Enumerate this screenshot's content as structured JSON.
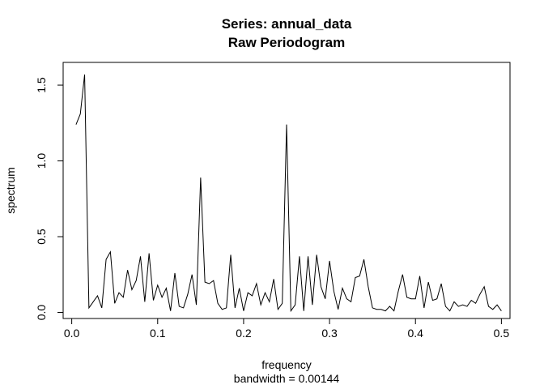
{
  "chart_data": {
    "type": "line",
    "title": "Series: annual_data",
    "subtitle": "Raw Periodogram",
    "xlabel": "frequency",
    "xlabel_sub": "bandwidth = 0.00144",
    "ylabel": "spectrum",
    "xlim": [
      -0.01,
      0.51
    ],
    "ylim": [
      -0.04,
      1.65
    ],
    "xticks": [
      {
        "value": 0.0,
        "label": "0.0"
      },
      {
        "value": 0.1,
        "label": "0.1"
      },
      {
        "value": 0.2,
        "label": "0.2"
      },
      {
        "value": 0.3,
        "label": "0.3"
      },
      {
        "value": 0.4,
        "label": "0.4"
      },
      {
        "value": 0.5,
        "label": "0.5"
      }
    ],
    "yticks": [
      {
        "value": 0.0,
        "label": "0.0"
      },
      {
        "value": 0.5,
        "label": "0.5"
      },
      {
        "value": 1.0,
        "label": "1.0"
      },
      {
        "value": 1.5,
        "label": "1.5"
      }
    ],
    "grid": false,
    "line_color": "#000000",
    "series": [
      {
        "x": [
          0.005,
          0.01,
          0.015,
          0.02,
          0.025,
          0.03,
          0.035,
          0.04,
          0.045,
          0.05,
          0.055,
          0.06,
          0.065,
          0.07,
          0.075,
          0.08,
          0.085,
          0.09,
          0.095,
          0.1,
          0.105,
          0.11,
          0.115,
          0.12,
          0.125,
          0.13,
          0.135,
          0.14,
          0.145,
          0.15,
          0.155,
          0.16,
          0.165,
          0.17,
          0.175,
          0.18,
          0.185,
          0.19,
          0.195,
          0.2,
          0.205,
          0.21,
          0.215,
          0.22,
          0.225,
          0.23,
          0.235,
          0.24,
          0.245,
          0.25,
          0.255,
          0.26,
          0.265,
          0.27,
          0.275,
          0.28,
          0.285,
          0.29,
          0.295,
          0.3,
          0.305,
          0.31,
          0.315,
          0.32,
          0.325,
          0.33,
          0.335,
          0.34,
          0.345,
          0.35,
          0.355,
          0.36,
          0.365,
          0.37,
          0.375,
          0.38,
          0.385,
          0.39,
          0.395,
          0.4,
          0.405,
          0.41,
          0.415,
          0.42,
          0.425,
          0.43,
          0.435,
          0.44,
          0.445,
          0.45,
          0.455,
          0.46,
          0.465,
          0.47,
          0.475,
          0.48,
          0.485,
          0.49,
          0.495,
          0.5
        ],
        "y": [
          1.24,
          1.31,
          1.57,
          0.03,
          0.07,
          0.11,
          0.03,
          0.35,
          0.4,
          0.06,
          0.13,
          0.1,
          0.28,
          0.15,
          0.21,
          0.37,
          0.07,
          0.39,
          0.08,
          0.18,
          0.1,
          0.16,
          0.01,
          0.26,
          0.04,
          0.03,
          0.12,
          0.25,
          0.05,
          0.89,
          0.2,
          0.19,
          0.21,
          0.06,
          0.02,
          0.03,
          0.38,
          0.03,
          0.16,
          0.01,
          0.13,
          0.11,
          0.19,
          0.05,
          0.13,
          0.07,
          0.22,
          0.02,
          0.06,
          1.24,
          0.01,
          0.05,
          0.37,
          0.01,
          0.37,
          0.05,
          0.38,
          0.17,
          0.09,
          0.34,
          0.14,
          0.02,
          0.16,
          0.09,
          0.07,
          0.23,
          0.24,
          0.35,
          0.17,
          0.03,
          0.02,
          0.02,
          0.01,
          0.04,
          0.01,
          0.14,
          0.25,
          0.1,
          0.09,
          0.09,
          0.24,
          0.03,
          0.2,
          0.08,
          0.09,
          0.19,
          0.04,
          0.01,
          0.07,
          0.04,
          0.05,
          0.04,
          0.08,
          0.06,
          0.12,
          0.17,
          0.04,
          0.02,
          0.05,
          0.01
        ]
      }
    ]
  }
}
